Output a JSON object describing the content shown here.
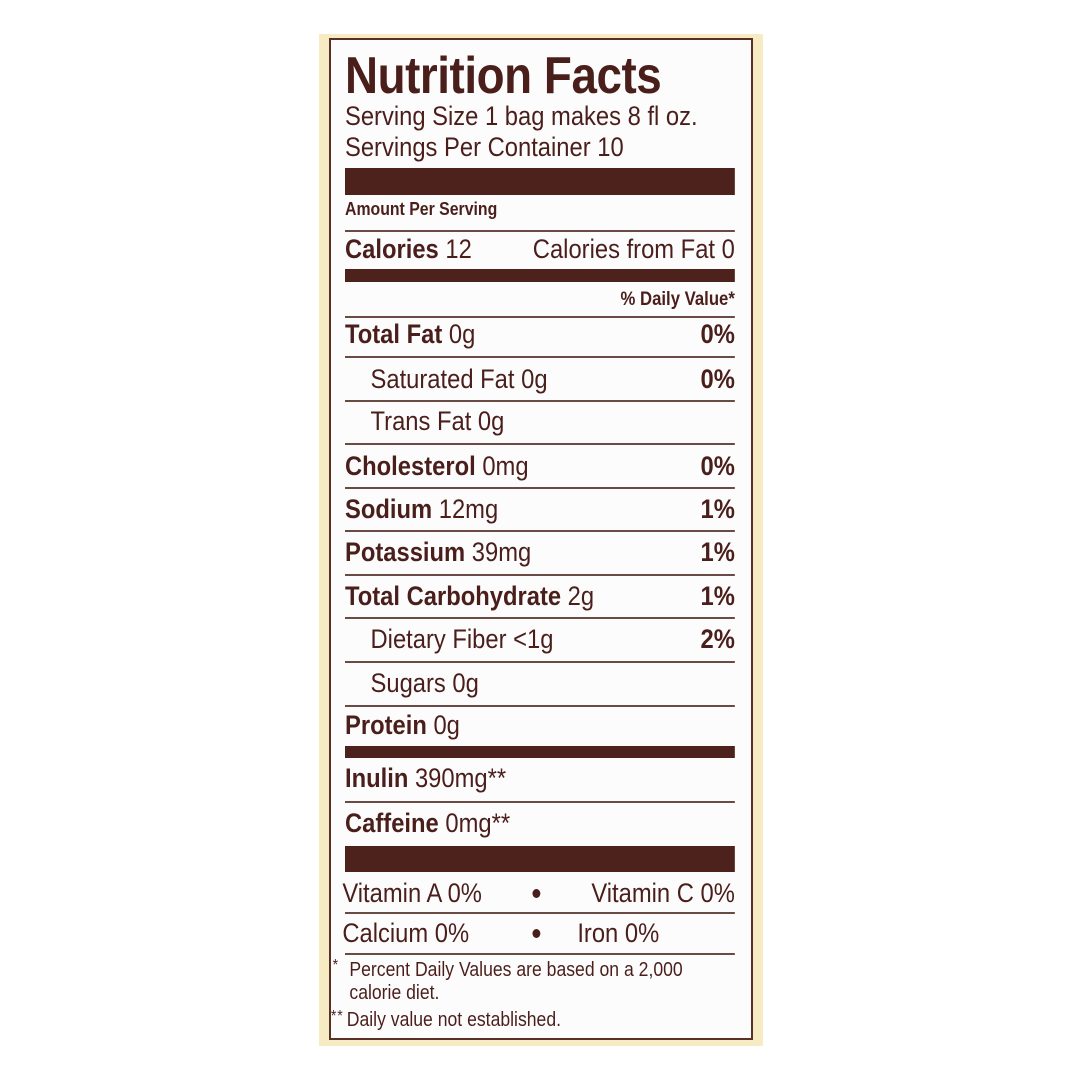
{
  "title": "Nutrition Facts",
  "serving_size": "Serving Size 1 bag makes 8 fl oz.",
  "servings_per_container": "Servings Per Container 10",
  "amount_per_serving": "Amount Per Serving",
  "calories": {
    "label": "Calories",
    "value": "12",
    "from_fat": "Calories from Fat 0"
  },
  "daily_value_header": "% Daily Value*",
  "nutrients": [
    {
      "name": "Total Fat",
      "amount": "0g",
      "dv": "0%"
    },
    {
      "name": "Saturated Fat",
      "amount": "0g",
      "dv": "0%"
    },
    {
      "name": "Trans Fat",
      "amount": "0g",
      "dv": ""
    },
    {
      "name": "Cholesterol",
      "amount": "0mg",
      "dv": "0%"
    },
    {
      "name": "Sodium",
      "amount": "12mg",
      "dv": "1%"
    },
    {
      "name": "Potassium",
      "amount": "39mg",
      "dv": "1%"
    },
    {
      "name": "Total Carbohydrate",
      "amount": "2g",
      "dv": "1%"
    },
    {
      "name": "Dietary Fiber",
      "amount": "<1g",
      "dv": "2%"
    },
    {
      "name": "Sugars",
      "amount": "0g",
      "dv": ""
    },
    {
      "name": "Protein",
      "amount": "0g",
      "dv": ""
    }
  ],
  "other": [
    {
      "name": "Inulin",
      "amount": "390mg**"
    },
    {
      "name": "Caffeine",
      "amount": "0mg**"
    }
  ],
  "vitamins": [
    {
      "left": "Vitamin A 0%",
      "right": "Vitamin C 0%"
    },
    {
      "left": "Calcium 0%",
      "right": "Iron 0%"
    }
  ],
  "footnotes": {
    "star": "*",
    "percent_line1": "Percent Daily Values are based on a 2,000",
    "percent_line2": "calorie diet.",
    "double_star": "**",
    "not_established": "Daily value not established."
  },
  "colors": {
    "ink": "#4a1f1b",
    "bar": "#4e221c",
    "panel": "#f7ebc4"
  }
}
